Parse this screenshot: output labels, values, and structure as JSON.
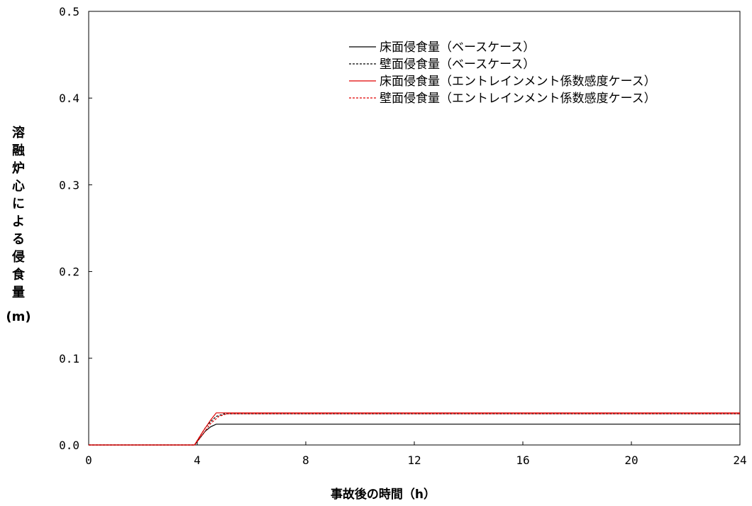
{
  "chart_data": {
    "type": "line",
    "xlabel": "事故後の時間（h）",
    "ylabel": "溶融炉心による侵食量",
    "ylabel_unit": "(m)",
    "xlim": [
      0,
      24
    ],
    "ylim": [
      0,
      0.5
    ],
    "x_ticks": [
      "0",
      "4",
      "8",
      "12",
      "16",
      "20",
      "24"
    ],
    "y_ticks": [
      "0.0",
      "0.1",
      "0.2",
      "0.3",
      "0.4",
      "0.5"
    ],
    "legend_position": "top-right",
    "grid": false,
    "series": [
      {
        "name": "床面侵食量（ベースケース）",
        "color": "#000000",
        "style": "solid",
        "points": [
          [
            0,
            0
          ],
          [
            3.9,
            0
          ],
          [
            4.1,
            0.008
          ],
          [
            4.3,
            0.016
          ],
          [
            4.5,
            0.021
          ],
          [
            4.7,
            0.024
          ],
          [
            24,
            0.024
          ]
        ]
      },
      {
        "name": "壁面侵食量（ベースケース）",
        "color": "#000000",
        "style": "dashed",
        "points": [
          [
            0,
            0
          ],
          [
            3.9,
            0
          ],
          [
            4.1,
            0.01
          ],
          [
            4.3,
            0.02
          ],
          [
            4.5,
            0.027
          ],
          [
            4.7,
            0.033
          ],
          [
            5.0,
            0.036
          ],
          [
            24,
            0.036
          ]
        ]
      },
      {
        "name": "床面侵食量（エントレインメント係数感度ケース）",
        "color": "#e00000",
        "style": "solid",
        "points": [
          [
            0,
            0
          ],
          [
            3.9,
            0
          ],
          [
            4.2,
            0.015
          ],
          [
            4.5,
            0.029
          ],
          [
            4.7,
            0.037
          ],
          [
            24,
            0.037
          ]
        ]
      },
      {
        "name": "壁面侵食量（エントレインメント係数感度ケース）",
        "color": "#e00000",
        "style": "dashed",
        "points": [
          [
            0,
            0
          ],
          [
            3.9,
            0
          ],
          [
            4.2,
            0.012
          ],
          [
            4.5,
            0.025
          ],
          [
            4.8,
            0.033
          ],
          [
            5.1,
            0.036
          ],
          [
            24,
            0.036
          ]
        ]
      }
    ]
  }
}
